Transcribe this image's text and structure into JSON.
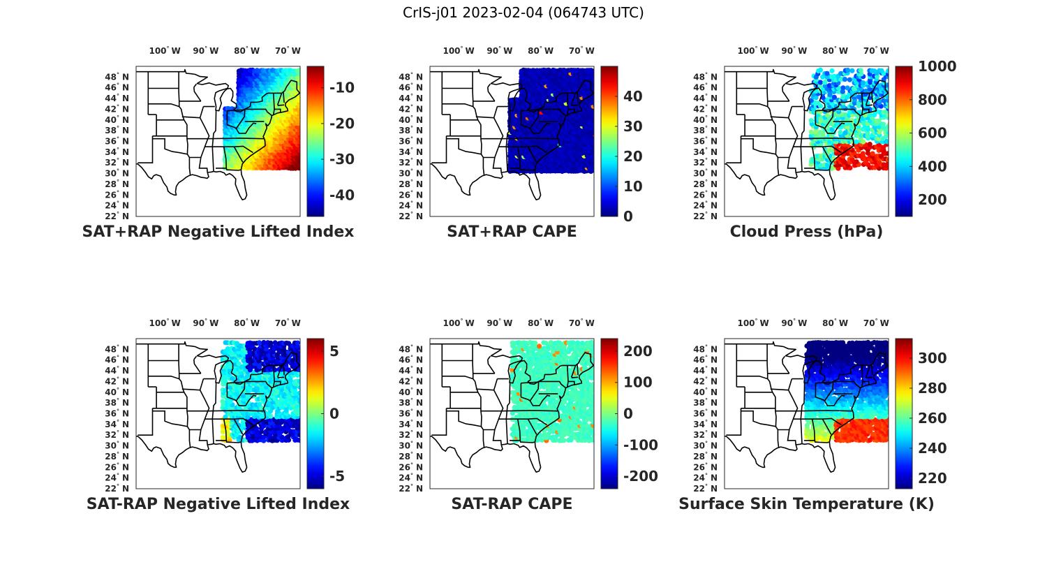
{
  "title": "CrIS-j01 2023-02-04 (064743 UTC)",
  "map_extent": {
    "lon": [
      -107,
      -67
    ],
    "lat": [
      22,
      50
    ]
  },
  "lon_ticks": [
    {
      "value": -100,
      "deg": "100",
      "hem": "W"
    },
    {
      "value": -90,
      "deg": "90",
      "hem": "W"
    },
    {
      "value": -80,
      "deg": "80",
      "hem": "W"
    },
    {
      "value": -70,
      "deg": "70",
      "hem": "W"
    }
  ],
  "lat_ticks": [
    {
      "value": 48,
      "deg": "48",
      "hem": "N"
    },
    {
      "value": 46,
      "deg": "46",
      "hem": "N"
    },
    {
      "value": 44,
      "deg": "44",
      "hem": "N"
    },
    {
      "value": 42,
      "deg": "42",
      "hem": "N"
    },
    {
      "value": 40,
      "deg": "40",
      "hem": "N"
    },
    {
      "value": 38,
      "deg": "38",
      "hem": "N"
    },
    {
      "value": 36,
      "deg": "36",
      "hem": "N"
    },
    {
      "value": 34,
      "deg": "34",
      "hem": "N"
    },
    {
      "value": 32,
      "deg": "32",
      "hem": "N"
    },
    {
      "value": 30,
      "deg": "30",
      "hem": "N"
    },
    {
      "value": 28,
      "deg": "28",
      "hem": "N"
    },
    {
      "value": 26,
      "deg": "26",
      "hem": "N"
    },
    {
      "value": 24,
      "deg": "24",
      "hem": "N"
    },
    {
      "value": 22,
      "deg": "22",
      "hem": "N"
    }
  ],
  "colormap": "jet",
  "panels": [
    {
      "id": "sat-rap-neg-li",
      "caption": "SAT+RAP Negative Lifted Index",
      "range": [
        -46,
        -4
      ],
      "ticks": [
        {
          "v": -10,
          "t": "-10"
        },
        {
          "v": -20,
          "t": "-20"
        },
        {
          "v": -30,
          "t": "-30"
        },
        {
          "v": -40,
          "t": "-40"
        }
      ],
      "field": "li"
    },
    {
      "id": "sat-rap-cape",
      "caption": "SAT+RAP CAPE",
      "range": [
        0,
        50
      ],
      "ticks": [
        {
          "v": 40,
          "t": "40"
        },
        {
          "v": 30,
          "t": "30"
        },
        {
          "v": 20,
          "t": "20"
        },
        {
          "v": 10,
          "t": "10"
        },
        {
          "v": 0,
          "t": "0"
        }
      ],
      "field": "cape"
    },
    {
      "id": "cloud-press",
      "caption": "Cloud Press (hPa)",
      "range": [
        100,
        1000
      ],
      "ticks": [
        {
          "v": 1000,
          "t": "1000"
        },
        {
          "v": 800,
          "t": "800"
        },
        {
          "v": 600,
          "t": "600"
        },
        {
          "v": 400,
          "t": "400"
        },
        {
          "v": 200,
          "t": "200"
        }
      ],
      "field": "cloud"
    },
    {
      "id": "sat-minus-rap-neg-li",
      "caption": "SAT-RAP Negative Lifted Index",
      "range": [
        -6,
        6
      ],
      "ticks": [
        {
          "v": 5,
          "t": "5"
        },
        {
          "v": 0,
          "t": "0"
        },
        {
          "v": -5,
          "t": "-5"
        }
      ],
      "field": "dli"
    },
    {
      "id": "sat-minus-rap-cape",
      "caption": "SAT-RAP CAPE",
      "range": [
        -240,
        240
      ],
      "ticks": [
        {
          "v": 200,
          "t": "200"
        },
        {
          "v": 100,
          "t": "100"
        },
        {
          "v": 0,
          "t": "0"
        },
        {
          "v": -100,
          "t": "-100"
        },
        {
          "v": -200,
          "t": "-200"
        }
      ],
      "field": "dcape"
    },
    {
      "id": "surface-skin-temp",
      "caption": "Surface Skin Temperature (K)",
      "range": [
        213,
        313
      ],
      "ticks": [
        {
          "v": 300,
          "t": "300"
        },
        {
          "v": 280,
          "t": "280"
        },
        {
          "v": 260,
          "t": "260"
        },
        {
          "v": 240,
          "t": "240"
        },
        {
          "v": 220,
          "t": "220"
        }
      ],
      "field": "skin"
    }
  ]
}
